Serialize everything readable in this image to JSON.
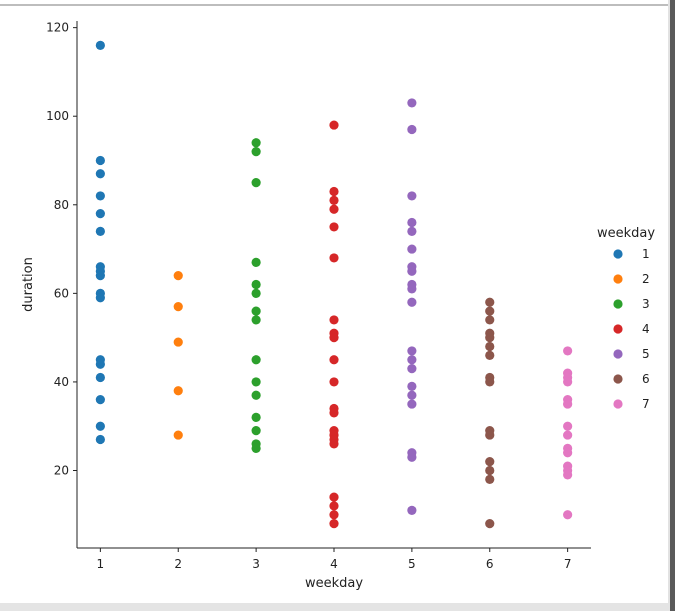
{
  "chart_data": {
    "type": "scatter",
    "xlabel": "weekday",
    "ylabel": "duration",
    "x_ticks": [
      1,
      2,
      3,
      4,
      5,
      6,
      7
    ],
    "y_ticks": [
      20,
      40,
      60,
      80,
      100,
      120
    ],
    "xlim": [
      0.7,
      7.3
    ],
    "ylim": [
      2.5,
      121.5
    ],
    "legend": {
      "title": "weekday",
      "placement": "right",
      "entries": [
        "1",
        "2",
        "3",
        "4",
        "5",
        "6",
        "7"
      ]
    },
    "series": [
      {
        "name": "1",
        "color": "#1f77b4",
        "x": 1,
        "values": [
          116,
          90,
          87,
          82,
          78,
          74,
          66,
          65,
          64,
          60,
          59,
          45,
          44,
          41,
          36,
          30,
          27
        ]
      },
      {
        "name": "2",
        "color": "#ff7f0e",
        "x": 2,
        "values": [
          64,
          57,
          49,
          38,
          28
        ]
      },
      {
        "name": "3",
        "color": "#2ca02c",
        "x": 3,
        "values": [
          94,
          92,
          85,
          67,
          62,
          60,
          56,
          54,
          45,
          40,
          37,
          32,
          29,
          26,
          25
        ]
      },
      {
        "name": "4",
        "color": "#d62728",
        "x": 4,
        "values": [
          98,
          83,
          81,
          79,
          75,
          68,
          54,
          51,
          50,
          45,
          40,
          34,
          33,
          29,
          28,
          27,
          26,
          14,
          12,
          10,
          8
        ]
      },
      {
        "name": "5",
        "color": "#9467bd",
        "x": 5,
        "values": [
          103,
          97,
          82,
          76,
          74,
          70,
          66,
          65,
          62,
          61,
          58,
          47,
          45,
          43,
          39,
          37,
          35,
          24,
          23,
          11
        ]
      },
      {
        "name": "6",
        "color": "#8c564b",
        "x": 6,
        "values": [
          58,
          56,
          54,
          51,
          50,
          48,
          46,
          41,
          40,
          29,
          28,
          22,
          20,
          18,
          8
        ]
      },
      {
        "name": "7",
        "color": "#e377c2",
        "x": 7,
        "values": [
          47,
          42,
          41,
          40,
          36,
          35,
          30,
          28,
          25,
          24,
          21,
          20,
          19,
          10
        ]
      }
    ]
  }
}
